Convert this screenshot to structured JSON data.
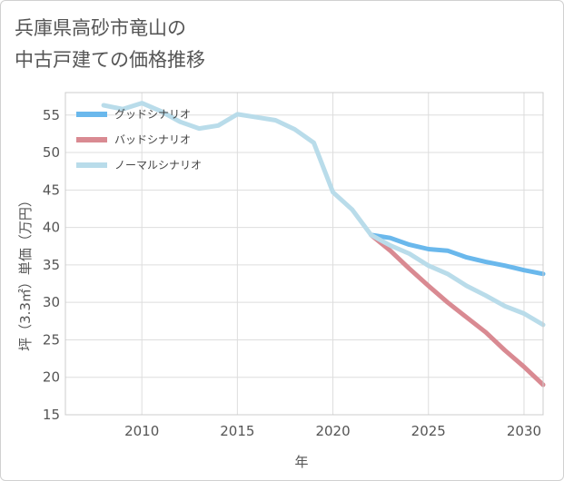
{
  "title_line1": "兵庫県高砂市竜山の",
  "title_line2": "中古戸建ての価格推移",
  "chart_data": {
    "type": "line",
    "xlabel": "年",
    "ylabel": "坪（3.3㎡）単価（万円）",
    "xlim": [
      2006,
      2031
    ],
    "ylim": [
      15,
      58
    ],
    "xticks": [
      2010,
      2015,
      2020,
      2025,
      2030
    ],
    "yticks": [
      15,
      20,
      25,
      30,
      35,
      40,
      45,
      50,
      55
    ],
    "grid": true,
    "legend_position": "top-left",
    "series": [
      {
        "name": "グッドシナリオ",
        "color": "#6ab8ec",
        "x": [
          2022,
          2023,
          2024,
          2025,
          2026,
          2027,
          2028,
          2029,
          2030,
          2031
        ],
        "y": [
          39.0,
          38.6,
          37.7,
          37.1,
          36.9,
          36.0,
          35.4,
          34.9,
          34.3,
          33.8
        ]
      },
      {
        "name": "バッドシナリオ",
        "color": "#d98a92",
        "x": [
          2022,
          2023,
          2024,
          2025,
          2026,
          2027,
          2028,
          2029,
          2030,
          2031
        ],
        "y": [
          39.0,
          36.9,
          34.5,
          32.2,
          30.0,
          28.0,
          26.0,
          23.6,
          21.4,
          19.0
        ]
      },
      {
        "name": "ノーマルシナリオ",
        "color": "#b9dcea",
        "x": [
          2008,
          2009,
          2010,
          2011,
          2012,
          2013,
          2014,
          2015,
          2016,
          2017,
          2018,
          2019,
          2020,
          2021,
          2022,
          2023,
          2024,
          2025,
          2026,
          2027,
          2028,
          2029,
          2030,
          2031
        ],
        "y": [
          56.3,
          55.8,
          56.6,
          55.5,
          54.1,
          53.2,
          53.6,
          55.1,
          54.7,
          54.3,
          53.1,
          51.3,
          44.7,
          42.4,
          39.0,
          37.6,
          36.5,
          34.9,
          33.8,
          32.2,
          30.9,
          29.5,
          28.5,
          27.0
        ]
      }
    ]
  }
}
